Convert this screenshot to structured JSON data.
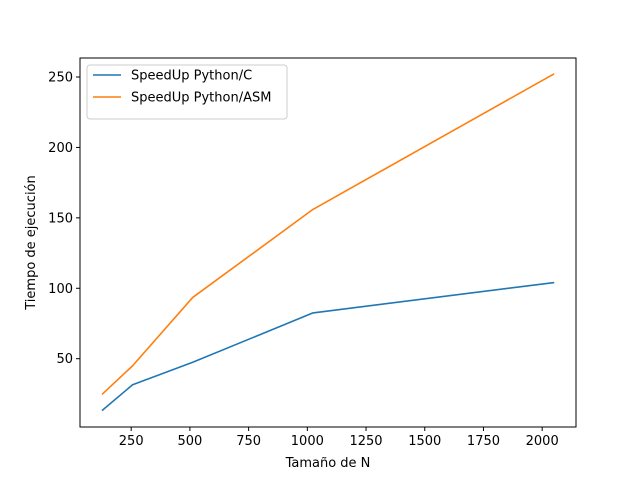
{
  "chart_data": {
    "type": "line",
    "title": "",
    "xlabel": "Tamaño de N",
    "ylabel": "Tiempo de ejecución",
    "x": [
      128,
      256,
      512,
      1024,
      2048
    ],
    "xlim": [
      32,
      2144
    ],
    "ylim": [
      1.5,
      263.5
    ],
    "xticks": [
      250,
      500,
      750,
      1000,
      1250,
      1500,
      1750,
      2000
    ],
    "yticks": [
      50,
      100,
      150,
      200,
      250
    ],
    "grid": false,
    "legend": "top-left",
    "series": [
      {
        "name": "SpeedUp Python/C",
        "color": "#1f77b4",
        "values": [
          13.5,
          31.5,
          47.5,
          82.5,
          104
        ]
      },
      {
        "name": "SpeedUp Python/ASM",
        "color": "#ff7f0e",
        "values": [
          25,
          45,
          93.5,
          156,
          252
        ]
      }
    ]
  }
}
